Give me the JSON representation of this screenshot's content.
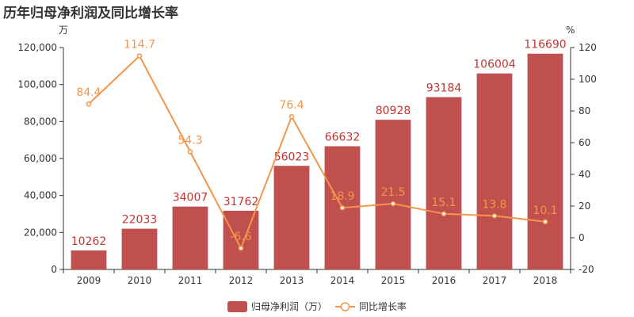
{
  "chart_data": {
    "type": "bar",
    "title": "历年归母净利润及同比增长率",
    "left_axis_unit": "万",
    "right_axis_unit": "%",
    "categories": [
      "2009",
      "2010",
      "2011",
      "2012",
      "2013",
      "2014",
      "2015",
      "2016",
      "2017",
      "2018"
    ],
    "series": [
      {
        "name": "归母净利润（万）",
        "type": "bar",
        "axis": "left",
        "color": "#c0504d",
        "values": [
          10262,
          22033,
          34007,
          31762,
          56023,
          66632,
          80928,
          93184,
          106004,
          116690
        ]
      },
      {
        "name": "同比增长率",
        "type": "line",
        "axis": "right",
        "color": "#f3964a",
        "values": [
          84.4,
          114.7,
          54.3,
          -6.6,
          76.4,
          18.9,
          21.5,
          15.1,
          13.8,
          10.1
        ]
      }
    ],
    "left_ylim": [
      0,
      120000
    ],
    "left_ticks": [
      "0",
      "20,000",
      "40,000",
      "60,000",
      "80,000",
      "100,000",
      "120,000"
    ],
    "right_ylim": [
      -20,
      120
    ],
    "right_ticks": [
      "-20",
      "0",
      "20",
      "40",
      "60",
      "80",
      "100",
      "120"
    ],
    "legend_position": "bottom-center",
    "grid": false
  }
}
